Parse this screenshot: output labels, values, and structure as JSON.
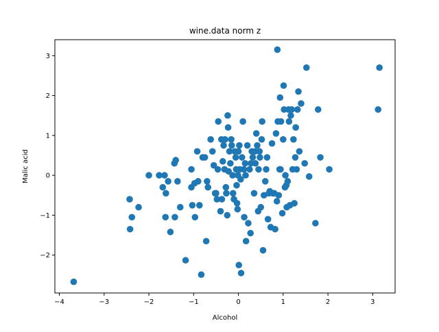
{
  "chart_data": {
    "type": "scatter",
    "title": "wine.data norm z",
    "xlabel": "Alcohol",
    "ylabel": "Malic acid",
    "xlim": [
      -4.1,
      3.5
    ],
    "ylim": [
      -2.95,
      3.4
    ],
    "xticks": [
      -4,
      -3,
      -2,
      -1,
      0,
      1,
      2,
      3
    ],
    "yticks": [
      -2,
      -1,
      0,
      1,
      2,
      3
    ],
    "xtick_labels": [
      "−4",
      "−3",
      "−2",
      "−1",
      "0",
      "1",
      "2",
      "3"
    ],
    "ytick_labels": [
      "−2",
      "−1",
      "0",
      "1",
      "2",
      "3"
    ],
    "grid": false,
    "legend": "none",
    "marker_color": "#1f77b4",
    "series": [
      {
        "points": [
          [
            -3.68,
            -2.67
          ],
          [
            -2.43,
            -0.6
          ],
          [
            -2.42,
            -1.35
          ],
          [
            -2.38,
            -1.05
          ],
          [
            -2.23,
            -0.8
          ],
          [
            -2.0,
            0.0
          ],
          [
            -1.77,
            0.0
          ],
          [
            -1.69,
            -0.3
          ],
          [
            -1.65,
            0.0
          ],
          [
            -1.63,
            -1.05
          ],
          [
            -1.62,
            -0.45
          ],
          [
            -1.57,
            -0.15
          ],
          [
            -1.52,
            -1.42
          ],
          [
            -1.43,
            0.3
          ],
          [
            -1.42,
            -1.05
          ],
          [
            -1.4,
            0.38
          ],
          [
            -1.36,
            -0.15
          ],
          [
            -1.3,
            -0.8
          ],
          [
            -1.18,
            -2.13
          ],
          [
            -1.05,
            0.15
          ],
          [
            -1.05,
            -0.3
          ],
          [
            -1.03,
            -0.75
          ],
          [
            -0.98,
            -0.2
          ],
          [
            -0.97,
            -1.05
          ],
          [
            -0.92,
            0.6
          ],
          [
            -0.9,
            -0.15
          ],
          [
            -0.87,
            -0.75
          ],
          [
            -0.83,
            -2.49
          ],
          [
            -0.8,
            0.45
          ],
          [
            -0.75,
            0.45
          ],
          [
            -0.72,
            -1.65
          ],
          [
            -0.7,
            -0.15
          ],
          [
            -0.68,
            -0.3
          ],
          [
            -0.62,
            0.9
          ],
          [
            -0.58,
            0.6
          ],
          [
            -0.55,
            0.25
          ],
          [
            -0.52,
            -0.45
          ],
          [
            -0.5,
            -0.45
          ],
          [
            -0.48,
            -0.6
          ],
          [
            -0.46,
            0.15
          ],
          [
            -0.45,
            1.35
          ],
          [
            -0.4,
            -0.9
          ],
          [
            -0.38,
            0.9
          ],
          [
            -0.37,
            -0.6
          ],
          [
            -0.35,
            0.35
          ],
          [
            -0.33,
            0.75
          ],
          [
            -0.31,
            0.15
          ],
          [
            -0.3,
            0.9
          ],
          [
            -0.28,
            -0.3
          ],
          [
            -0.27,
            -0.45
          ],
          [
            -0.25,
            -1.0
          ],
          [
            -0.24,
            1.5
          ],
          [
            -0.23,
            1.2
          ],
          [
            -0.22,
            0.1
          ],
          [
            -0.2,
            0.6
          ],
          [
            -0.18,
            0.3
          ],
          [
            -0.16,
            0.9
          ],
          [
            -0.15,
            0.75
          ],
          [
            -0.13,
            0.0
          ],
          [
            -0.12,
            -0.45
          ],
          [
            -0.1,
            -0.6
          ],
          [
            -0.08,
            0.6
          ],
          [
            -0.06,
            0.45
          ],
          [
            -0.05,
            0.15
          ],
          [
            -0.04,
            -0.25
          ],
          [
            -0.03,
            -0.7
          ],
          [
            -0.02,
            -0.85
          ],
          [
            -0.01,
            0.0
          ],
          [
            0.0,
            0.6
          ],
          [
            0.01,
            -2.25
          ],
          [
            0.02,
            0.75
          ],
          [
            0.03,
            0.15
          ],
          [
            0.05,
            -0.1
          ],
          [
            0.06,
            -2.45
          ],
          [
            0.08,
            0.45
          ],
          [
            0.1,
            1.35
          ],
          [
            0.12,
            0.15
          ],
          [
            0.13,
            -1.05
          ],
          [
            0.15,
            0.3
          ],
          [
            0.16,
            0.0
          ],
          [
            0.17,
            -1.65
          ],
          [
            0.2,
            0.75
          ],
          [
            0.22,
            -1.2
          ],
          [
            0.25,
            0.15
          ],
          [
            0.27,
            -1.45
          ],
          [
            0.28,
            0.3
          ],
          [
            0.3,
            0.6
          ],
          [
            0.32,
            0.45
          ],
          [
            0.35,
            -0.45
          ],
          [
            0.37,
            0.6
          ],
          [
            0.38,
            0.3
          ],
          [
            0.4,
            1.05
          ],
          [
            0.42,
            0.75
          ],
          [
            0.44,
            -0.9
          ],
          [
            0.45,
            0.15
          ],
          [
            0.47,
            0.6
          ],
          [
            0.48,
            0.45
          ],
          [
            0.5,
            -0.8
          ],
          [
            0.52,
            0.9
          ],
          [
            0.53,
            1.35
          ],
          [
            0.55,
            -1.88
          ],
          [
            0.57,
            -0.5
          ],
          [
            0.6,
            -0.15
          ],
          [
            0.62,
            0.15
          ],
          [
            0.64,
            0.45
          ],
          [
            0.66,
            -1.1
          ],
          [
            0.68,
            -0.45
          ],
          [
            0.7,
            -0.4
          ],
          [
            0.72,
            -1.3
          ],
          [
            0.75,
            0.8
          ],
          [
            0.77,
            -0.45
          ],
          [
            0.8,
            -0.45
          ],
          [
            0.82,
            -1.35
          ],
          [
            0.84,
            1.05
          ],
          [
            0.86,
            -0.65
          ],
          [
            0.87,
            3.15
          ],
          [
            0.88,
            1.35
          ],
          [
            0.9,
            -0.5
          ],
          [
            0.92,
            0.15
          ],
          [
            0.93,
            1.95
          ],
          [
            0.94,
            0.15
          ],
          [
            0.95,
            1.35
          ],
          [
            0.98,
            -0.95
          ],
          [
            1.0,
            0.9
          ],
          [
            1.01,
            2.25
          ],
          [
            1.02,
            1.65
          ],
          [
            1.04,
            -0.3
          ],
          [
            1.05,
            0.0
          ],
          [
            1.07,
            -0.25
          ],
          [
            1.08,
            -0.8
          ],
          [
            1.1,
            -0.15
          ],
          [
            1.12,
            1.65
          ],
          [
            1.13,
            1.35
          ],
          [
            1.15,
            -0.75
          ],
          [
            1.17,
            1.5
          ],
          [
            1.19,
            1.65
          ],
          [
            1.21,
            0.15
          ],
          [
            1.23,
            0.9
          ],
          [
            1.25,
            -0.7
          ],
          [
            1.27,
            0.45
          ],
          [
            1.28,
            1.2
          ],
          [
            1.3,
            0.15
          ],
          [
            1.32,
            1.65
          ],
          [
            1.34,
            2.1
          ],
          [
            1.36,
            0.6
          ],
          [
            1.4,
            1.8
          ],
          [
            1.48,
            0.3
          ],
          [
            1.52,
            2.7
          ],
          [
            1.58,
            -0.03
          ],
          [
            1.72,
            -1.2
          ],
          [
            1.78,
            1.65
          ],
          [
            1.83,
            0.45
          ],
          [
            2.03,
            0.15
          ],
          [
            3.12,
            1.65
          ],
          [
            3.15,
            2.7
          ]
        ]
      }
    ]
  }
}
